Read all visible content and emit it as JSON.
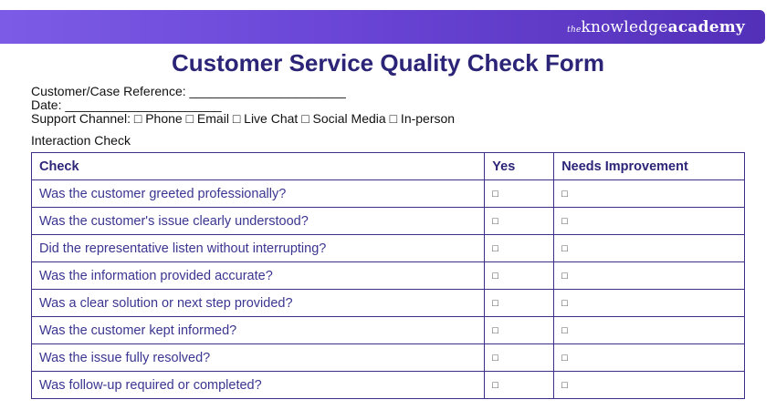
{
  "brand": {
    "the": "the",
    "knowledge": "knowledge",
    "academy": "academy"
  },
  "title": "Customer Service Quality Check Form",
  "fields": {
    "reference": "Customer/Case Reference: ______________________",
    "date": "Date: ______________________",
    "channel": "Support Channel: □ Phone □ Email □ Live Chat □ Social Media □ In-person"
  },
  "section_title": "Interaction Check",
  "table": {
    "headers": [
      "Check",
      "Yes",
      "Needs Improvement"
    ],
    "rows": [
      {
        "question": "Was the customer greeted professionally?",
        "yes": "□",
        "improve": "□"
      },
      {
        "question": "Was the customer's issue clearly understood?",
        "yes": "□",
        "improve": "□"
      },
      {
        "question": "Did the representative listen without interrupting?",
        "yes": "□",
        "improve": "□"
      },
      {
        "question": "Was the information provided accurate?",
        "yes": "□",
        "improve": "□"
      },
      {
        "question": "Was a clear solution or next step provided?",
        "yes": "□",
        "improve": "□"
      },
      {
        "question": "Was the customer kept informed?",
        "yes": "□",
        "improve": "□"
      },
      {
        "question": "Was the issue fully resolved?",
        "yes": "□",
        "improve": "□"
      },
      {
        "question": "Was follow-up required or completed?",
        "yes": "□",
        "improve": "□"
      }
    ]
  },
  "colors": {
    "banner_start": "#7c5ce6",
    "banner_end": "#5330b8",
    "title": "#2b2477",
    "table_border": "#3c2f8a"
  }
}
